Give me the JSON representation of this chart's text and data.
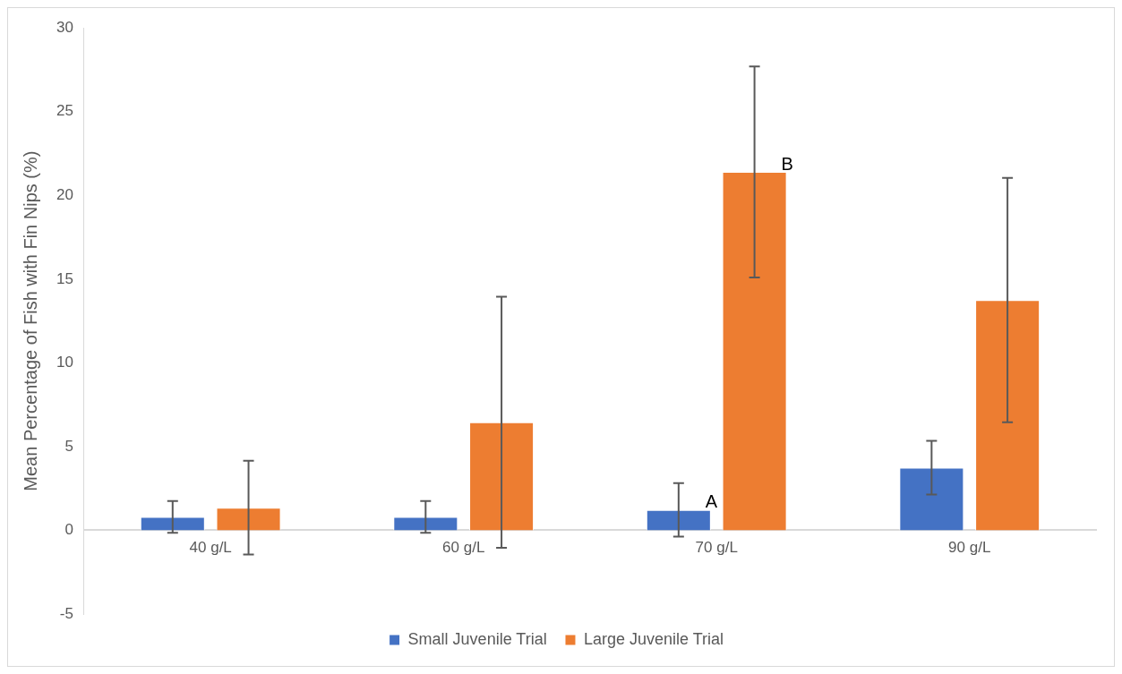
{
  "chart_data": {
    "type": "bar",
    "ylabel": "Mean Percentage of Fish with Fin Nips (%)",
    "categories": [
      "40 g/L",
      "60 g/L",
      "70 g/L",
      "90 g/L"
    ],
    "series": [
      {
        "name": "Small Juvenile Trial",
        "color": "#4472c4",
        "values": [
          0.8,
          0.8,
          1.22,
          3.74
        ],
        "errors": [
          0.95,
          0.95,
          1.6,
          1.6
        ]
      },
      {
        "name": "Large Juvenile Trial",
        "color": "#ed7d31",
        "values": [
          1.35,
          6.45,
          21.4,
          13.75
        ],
        "errors": [
          2.8,
          7.5,
          6.3,
          7.3
        ]
      }
    ],
    "ylim": [
      -5,
      30
    ],
    "yticks": [
      -5,
      0,
      5,
      10,
      15,
      20,
      25,
      30
    ],
    "grid": false,
    "legend": "bottom",
    "annotations": [
      "A",
      "B"
    ]
  }
}
